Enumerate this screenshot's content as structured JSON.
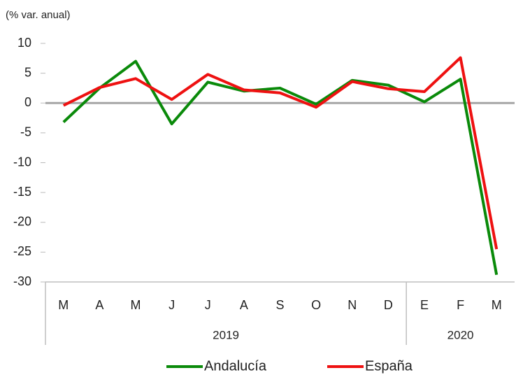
{
  "chart_data": {
    "type": "line",
    "y_axis_label": "(% var. anual)",
    "categories": [
      "M",
      "A",
      "M",
      "J",
      "J",
      "A",
      "S",
      "O",
      "N",
      "D",
      "E",
      "F",
      "M"
    ],
    "category_groups": [
      {
        "label": "2019",
        "count": 10
      },
      {
        "label": "2020",
        "count": 3
      }
    ],
    "series": [
      {
        "name": "Andalucía",
        "color": "#0a8a0a",
        "values": [
          -3.2,
          2.5,
          7.0,
          -3.5,
          3.5,
          2.0,
          2.5,
          -0.2,
          3.8,
          3.0,
          0.2,
          4.0,
          -28.8
        ]
      },
      {
        "name": "España",
        "color": "#ee1111",
        "values": [
          -0.4,
          2.6,
          4.1,
          0.6,
          4.8,
          2.2,
          1.7,
          -0.7,
          3.6,
          2.4,
          1.9,
          7.6,
          -24.5
        ]
      }
    ],
    "ylim": [
      -30,
      10
    ],
    "yticks": [
      10,
      5,
      0,
      -5,
      -10,
      -15,
      -20,
      -25,
      -30
    ],
    "legend": "bottom"
  }
}
